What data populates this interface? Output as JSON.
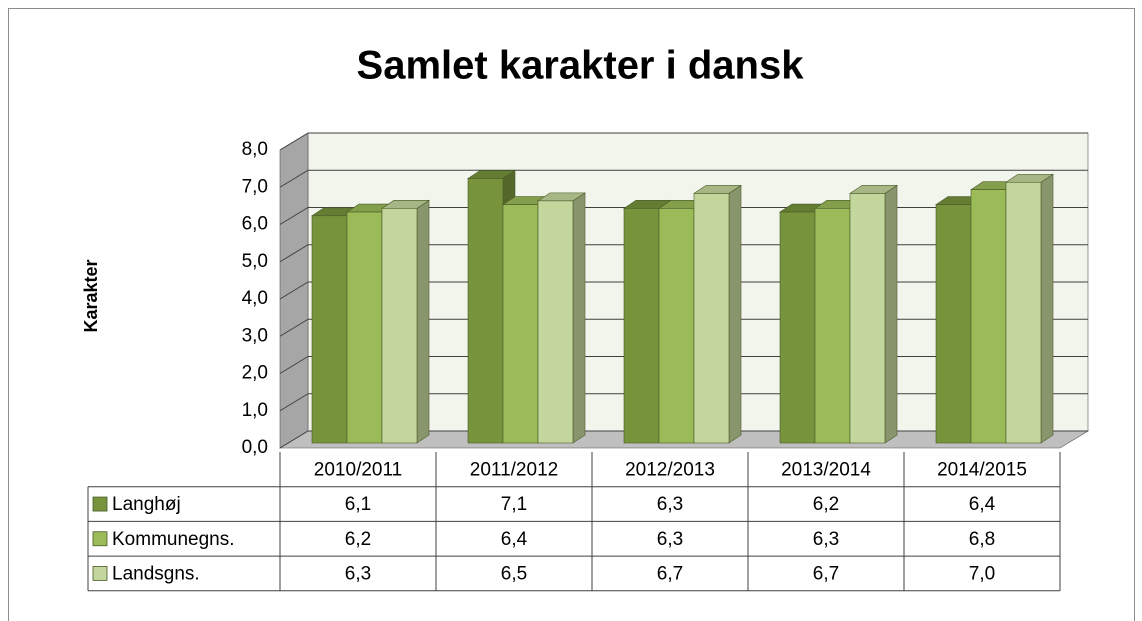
{
  "chart_data": {
    "type": "bar3d",
    "title": "Samlet karakter i dansk",
    "y_axis_label": "Karakter",
    "categories": [
      "2010/2011",
      "2011/2012",
      "2012/2013",
      "2013/2014",
      "2014/2015"
    ],
    "series": [
      {
        "name": "Langhøj",
        "color": "#77933c",
        "values": [
          6.1,
          7.1,
          6.3,
          6.2,
          6.4
        ],
        "value_labels": [
          "6,1",
          "7,1",
          "6,3",
          "6,2",
          "6,4"
        ]
      },
      {
        "name": "Kommunegns.",
        "color": "#9bbb59",
        "values": [
          6.2,
          6.4,
          6.3,
          6.3,
          6.8
        ],
        "value_labels": [
          "6,2",
          "6,4",
          "6,3",
          "6,3",
          "6,8"
        ]
      },
      {
        "name": "Landsgns.",
        "color": "#c3d69b",
        "values": [
          6.3,
          6.5,
          6.7,
          6.7,
          7.0
        ],
        "value_labels": [
          "6,3",
          "6,5",
          "6,7",
          "6,7",
          "7,0"
        ]
      }
    ],
    "ylim": [
      0,
      8
    ],
    "yticks": [
      {
        "value": 0,
        "label": "0,0"
      },
      {
        "value": 1,
        "label": "1,0"
      },
      {
        "value": 2,
        "label": "2,0"
      },
      {
        "value": 3,
        "label": "3,0"
      },
      {
        "value": 4,
        "label": "4,0"
      },
      {
        "value": 5,
        "label": "5,0"
      },
      {
        "value": 6,
        "label": "6,0"
      },
      {
        "value": 7,
        "label": "7,0"
      },
      {
        "value": 8,
        "label": "8,0"
      }
    ],
    "grid": true,
    "data_table": true
  }
}
